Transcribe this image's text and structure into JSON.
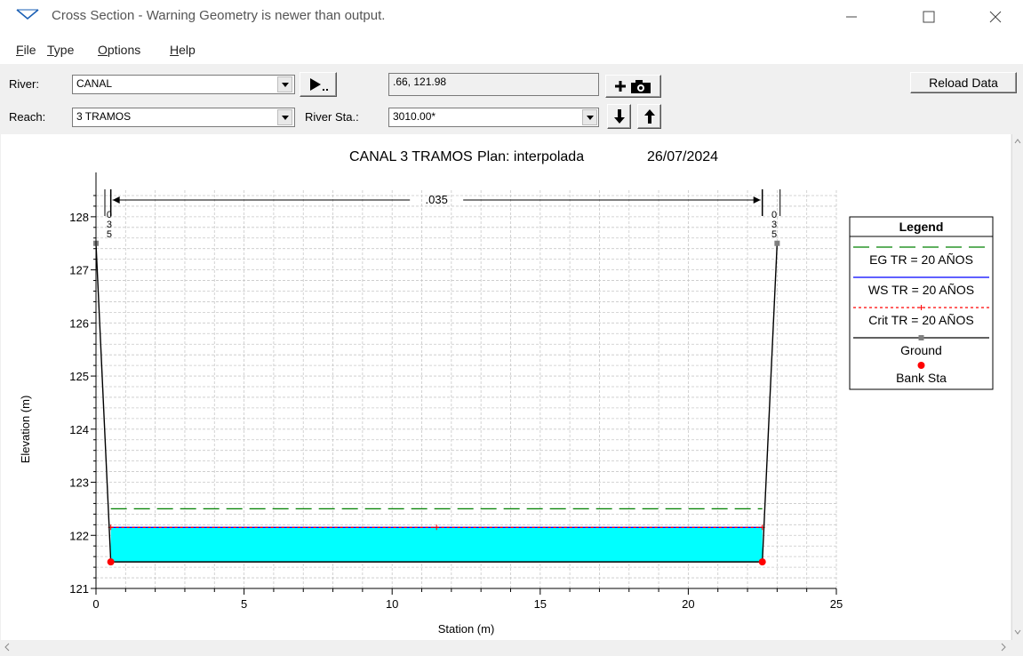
{
  "window": {
    "title": "Cross Section - Warning Geometry is newer than output."
  },
  "menu": {
    "file": "File",
    "type": "Type",
    "options": "Options",
    "help": "Help"
  },
  "toolbar": {
    "river_label": "River:",
    "river_value": "CANAL",
    "coords": ".66, 121.98",
    "reload_label": "Reload Data",
    "reach_label": "Reach:",
    "reach_value": "3 TRAMOS",
    "river_sta_label": "River Sta.:",
    "river_sta_value": "3010.00*"
  },
  "chart_header": {
    "name": "CANAL 3 TRAMOS",
    "plan": "Plan: interpolada",
    "date": "26/07/2024"
  },
  "chart_data": {
    "type": "line",
    "title": "CANAL 3 TRAMOS     Plan: interpolada     26/07/2024",
    "xlabel": "Station (m)",
    "ylabel": "Elevation (m)",
    "xlim": [
      0,
      25
    ],
    "ylim": [
      121,
      128.5
    ],
    "x_ticks": [
      "0",
      "5",
      "10",
      "15",
      "20",
      "25"
    ],
    "y_ticks": [
      "121",
      "122",
      "123",
      "124",
      "125",
      "126",
      "127",
      "128"
    ],
    "grid": true,
    "manning_label": ".035",
    "manning_sides": [
      "0\n3\n5",
      "0\n3\n5"
    ],
    "series": [
      {
        "name": "EG TR = 20 AÑOS",
        "color": "#008000",
        "style": "long-dash",
        "x": [
          0.5,
          22.5
        ],
        "y": [
          122.5,
          122.5
        ]
      },
      {
        "name": "WS TR = 20 AÑOS",
        "color": "#0000ff",
        "style": "solid",
        "x": [
          0.5,
          22.5
        ],
        "y": [
          122.15,
          122.15
        ]
      },
      {
        "name": "Crit TR = 20 AÑOS",
        "color": "#ff0000",
        "style": "dash-plus",
        "x": [
          0.5,
          22.5
        ],
        "y": [
          122.15,
          122.15
        ],
        "marker_x": [
          0.5,
          11.5,
          22.5
        ]
      },
      {
        "name": "Ground",
        "color": "#000000",
        "style": "solid",
        "x": [
          0,
          0.5,
          22.5,
          23
        ],
        "y": [
          127.5,
          121.5,
          121.5,
          127.5
        ]
      },
      {
        "name": "Bank Sta",
        "color": "#ff0000",
        "style": "point",
        "x": [
          0.5,
          22.5
        ],
        "y": [
          121.5,
          121.5
        ]
      }
    ],
    "water_fill": {
      "color": "#00ffff",
      "x_range": [
        0.5,
        22.5
      ],
      "y_range": [
        121.5,
        122.15
      ]
    },
    "legend": {
      "title": "Legend",
      "placement": "right",
      "entries": [
        "EG TR = 20 AÑOS",
        "WS TR = 20 AÑOS",
        "Crit TR = 20 AÑOS",
        "Ground",
        "Bank Sta"
      ]
    }
  }
}
